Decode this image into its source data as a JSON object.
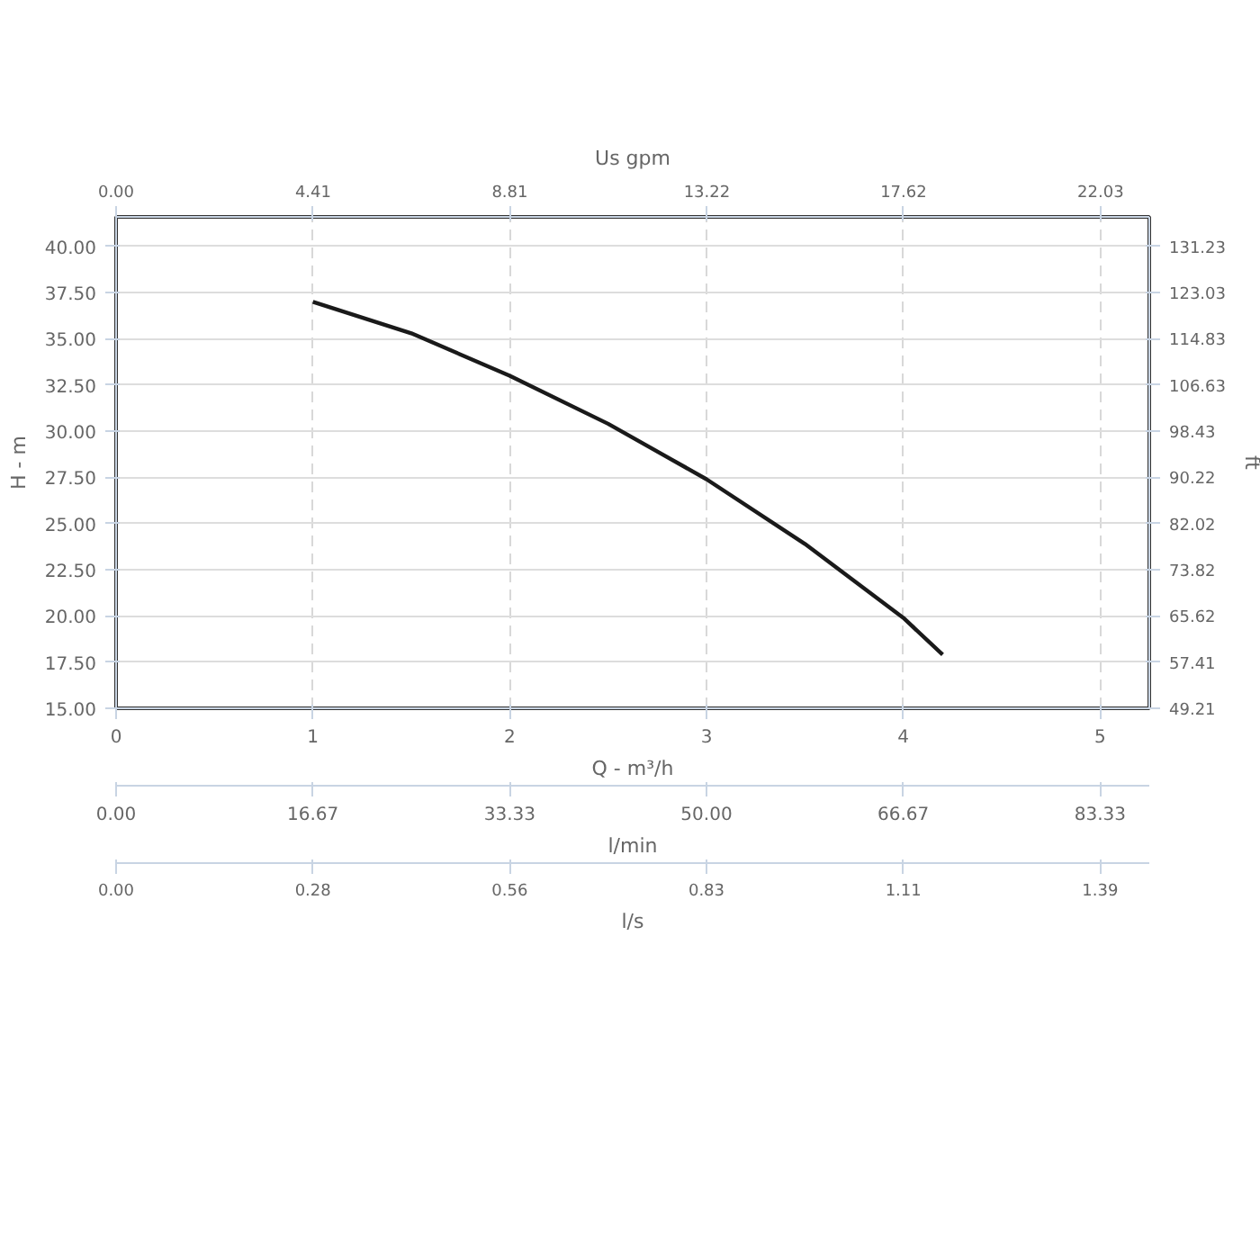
{
  "chart_data": {
    "type": "line",
    "xlabel": "Q - m³/h",
    "ylabel": "H - m",
    "y2label": "ft",
    "x2label": "Us gpm",
    "annotations": [
      "0.00",
      "16.67",
      "33.33",
      "50.00",
      "66.67",
      "83.33",
      "l/min",
      "0.00",
      "0.28",
      "0.56",
      "0.83",
      "1.11",
      "1.39",
      "l/s"
    ],
    "x": [
      1,
      1.5,
      2,
      2.5,
      3,
      3.5,
      4,
      4.2
    ],
    "series": [
      {
        "color": "#1a1a1a",
        "values": [
          37.0,
          35.3,
          33.0,
          30.4,
          27.4,
          23.9,
          19.9,
          17.9
        ]
      }
    ],
    "xlim": [
      0,
      5.25
    ],
    "xticks": [
      0,
      1,
      2,
      3,
      4,
      5
    ],
    "ylim": [
      15,
      41.6
    ],
    "yticks": [
      {
        "value": 15,
        "label": "15.00"
      },
      {
        "value": 17.5,
        "label": "17.50"
      },
      {
        "value": 20,
        "label": "20.00"
      },
      {
        "value": 22.5,
        "label": "22.50"
      },
      {
        "value": 25,
        "label": "25.00"
      },
      {
        "value": 27.5,
        "label": "27.50"
      },
      {
        "value": 30,
        "label": "30.00"
      },
      {
        "value": 32.5,
        "label": "32.50"
      },
      {
        "value": 35,
        "label": "35.00"
      },
      {
        "value": 37.5,
        "label": "37.50"
      },
      {
        "value": 40,
        "label": "40.00"
      }
    ],
    "y2lim": [
      49.21,
      136.48
    ],
    "y2ticks": [
      49.21,
      57.41,
      65.62,
      73.82,
      82.02,
      90.22,
      98.43,
      106.63,
      114.83,
      123.03,
      131.23
    ],
    "x2lim": [
      0,
      23.12
    ],
    "x2ticks": [
      {
        "value": 0,
        "label": "0.00"
      },
      4.41,
      8.81,
      13.22,
      17.62,
      22.03
    ],
    "grid": true,
    "marker": "none",
    "line_style": "solid"
  }
}
